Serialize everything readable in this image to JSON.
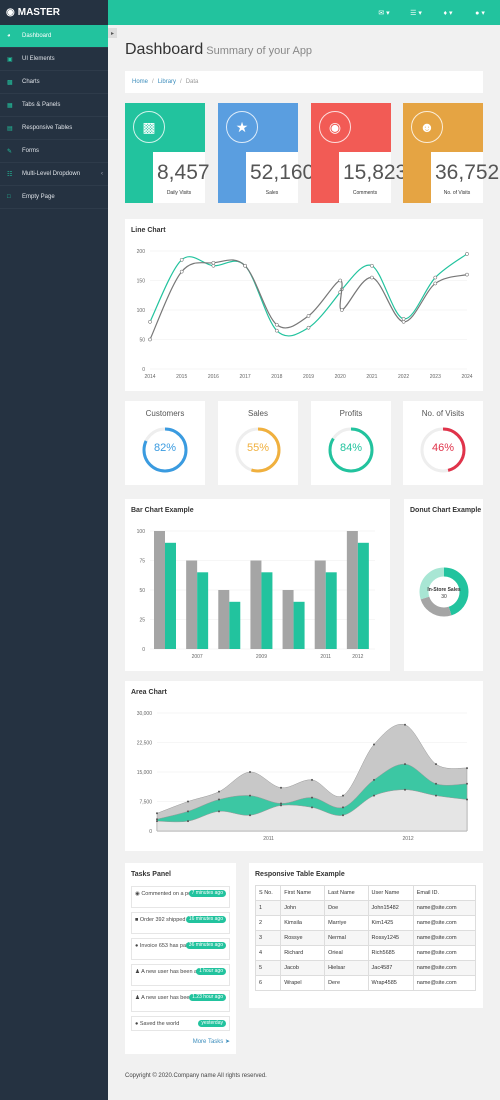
{
  "brand": {
    "name": "MASTER"
  },
  "topbar": {
    "icons": [
      "envelope-icon",
      "tasks-icon",
      "bell-icon",
      "user-icon"
    ]
  },
  "sidebar": {
    "items": [
      {
        "label": "Dashboard",
        "icon": "dashboard-icon",
        "active": true
      },
      {
        "label": "UI Elements",
        "icon": "desktop-icon"
      },
      {
        "label": "Charts",
        "icon": "bar-chart-icon"
      },
      {
        "label": "Tabs & Panels",
        "icon": "qrcode-icon"
      },
      {
        "label": "Responsive Tables",
        "icon": "table-icon"
      },
      {
        "label": "Forms",
        "icon": "edit-icon"
      },
      {
        "label": "Multi-Level Dropdown",
        "icon": "sitemap-icon",
        "has_submenu": true
      },
      {
        "label": "Empty Page",
        "icon": "file-icon"
      }
    ]
  },
  "header": {
    "title": "Dashboard",
    "subtitle": "Summary of your App"
  },
  "breadcrumb": {
    "home": "Home",
    "library": "Library",
    "current": "Data",
    "sep": "/"
  },
  "stats": [
    {
      "value": "8,457",
      "label": "Daily Visits",
      "color": "#22c39e",
      "icon": "bar-chart-icon"
    },
    {
      "value": "52,160",
      "label": "Sales",
      "color": "#5a9ee0",
      "icon": "shopping-cart-icon"
    },
    {
      "value": "15,823",
      "label": "Comments",
      "color": "#f25b55",
      "icon": "comments-icon"
    },
    {
      "value": "36,752",
      "label": "No. of Visits",
      "color": "#e5a443",
      "icon": "users-icon"
    }
  ],
  "gauges": [
    {
      "title": "Customers",
      "value": 82,
      "label": "82%",
      "color": "#3a9be0"
    },
    {
      "title": "Sales",
      "value": 55,
      "label": "55%",
      "color": "#f0b03e"
    },
    {
      "title": "Profits",
      "value": 84,
      "label": "84%",
      "color": "#22c39e"
    },
    {
      "title": "No. of Visits",
      "value": 46,
      "label": "46%",
      "color": "#e0334a"
    }
  ],
  "line_chart": {
    "title": "Line Chart"
  },
  "bar_chart": {
    "title": "Bar Chart Example"
  },
  "donut_chart": {
    "title": "Donut Chart Example"
  },
  "area_chart": {
    "title": "Area Chart"
  },
  "chart_data": [
    {
      "type": "line",
      "title": "Line Chart",
      "x": [
        2014,
        2015,
        2016,
        2017,
        2018,
        2019,
        2020,
        2020,
        2021,
        2022,
        2023,
        2024
      ],
      "ylim": [
        0,
        200
      ],
      "yticks": [
        0,
        50,
        100,
        150,
        200
      ],
      "xticks": [
        "2014",
        "2015",
        "2016",
        "2017",
        "2018",
        "2019",
        "2020",
        "2021",
        "2022",
        "2023",
        "2024"
      ],
      "series": [
        {
          "color": "#22c39e",
          "values": [
            80,
            185,
            175,
            175,
            65,
            70,
            130,
            135,
            175,
            85,
            155,
            195
          ]
        },
        {
          "color": "#777777",
          "values": [
            50,
            165,
            180,
            175,
            75,
            90,
            150,
            100,
            155,
            80,
            145,
            160
          ]
        }
      ]
    },
    {
      "type": "bar",
      "title": "Bar Chart Example",
      "ylim": [
        0,
        100
      ],
      "yticks": [
        0,
        25,
        50,
        75,
        100
      ],
      "xticks": [
        "2007",
        "2009",
        "2011",
        "2012"
      ],
      "series": [
        {
          "color": "#a5a5a5",
          "values": [
            100,
            75,
            50,
            75,
            50,
            75,
            100
          ]
        },
        {
          "color": "#22c39e",
          "values": [
            90,
            65,
            40,
            65,
            40,
            65,
            90
          ]
        }
      ]
    },
    {
      "type": "pie",
      "title": "Donut Chart Example",
      "center_label": "In-Store Sales",
      "center_value": "30",
      "slices": [
        {
          "value": 45,
          "color": "#22c39e"
        },
        {
          "value": 25,
          "color": "#a5a5a5"
        },
        {
          "value": 30,
          "color": "#a8e6d4"
        }
      ]
    },
    {
      "type": "area",
      "title": "Area Chart",
      "ylim": [
        0,
        30000
      ],
      "yticks": [
        "0",
        "7,500",
        "15,000",
        "22,500",
        "30,000"
      ],
      "xticks": [
        "2011",
        "2012"
      ],
      "series": [
        {
          "color": "#c8c8c8",
          "values": [
            4500,
            7500,
            10000,
            15000,
            11000,
            13000,
            9000,
            22000,
            27000,
            17000,
            16000
          ]
        },
        {
          "color": "#3cc7a3",
          "values": [
            3000,
            5000,
            8000,
            9000,
            7000,
            8500,
            6000,
            13000,
            17000,
            12000,
            12000
          ]
        },
        {
          "color": "#e5e5e5",
          "values": [
            2500,
            2500,
            5000,
            4000,
            6500,
            6000,
            4000,
            9000,
            10500,
            9000,
            8000
          ]
        }
      ]
    }
  ],
  "tasks": {
    "title": "Tasks Panel",
    "more": "More Tasks",
    "items": [
      {
        "icon": "comment-icon",
        "text": "Commented on a post",
        "time": "7 minutes ago"
      },
      {
        "icon": "truck-icon",
        "text": "Order 392 shipped",
        "time": "16 minutes ago"
      },
      {
        "icon": "globe-icon",
        "text": "Invoice 653 has paid",
        "time": "36 minutes ago"
      },
      {
        "icon": "user-icon",
        "text": "A new user has been added",
        "time": "1 hour ago"
      },
      {
        "icon": "user-icon",
        "text": "A new user has been added",
        "time": "1.23 hour ago"
      },
      {
        "icon": "globe-icon",
        "text": "Saved the world",
        "time": "yesterday"
      }
    ]
  },
  "table": {
    "title": "Responsive Table Example",
    "headers": [
      "S No.",
      "First Name",
      "Last Name",
      "User Name",
      "Email ID."
    ],
    "rows": [
      [
        "1",
        "John",
        "Doe",
        "John15482",
        "name@site.com"
      ],
      [
        "2",
        "Kimsila",
        "Marriye",
        "Kim1425",
        "name@site.com"
      ],
      [
        "3",
        "Rossye",
        "Nermal",
        "Rossy1245",
        "name@site.com"
      ],
      [
        "4",
        "Richard",
        "Orieal",
        "Rich5685",
        "name@site.com"
      ],
      [
        "5",
        "Jacob",
        "Hielsar",
        "Jac4587",
        "name@site.com"
      ],
      [
        "6",
        "Wrapel",
        "Dere",
        "Wrap4585",
        "name@site.com"
      ]
    ]
  },
  "footer": {
    "text": "Copyright © 2020.Company name All rights reserved."
  }
}
